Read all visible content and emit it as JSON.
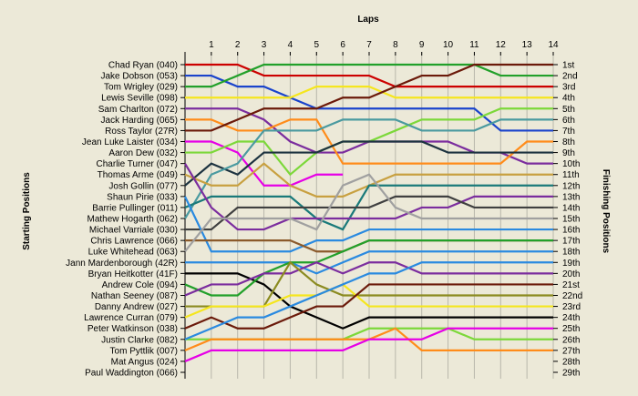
{
  "chart_data": {
    "type": "line",
    "chart_kind": "lap position chart",
    "title": "Laps",
    "xlabel": "Laps",
    "ylabel_left": "Starting Positions",
    "ylabel_right": "Finishing Positions",
    "x_ticks": [
      1,
      2,
      3,
      4,
      5,
      6,
      7,
      8,
      9,
      10,
      11,
      12,
      13,
      14
    ],
    "xlim": [
      0,
      14
    ],
    "y_axis": "position (1 at top)",
    "grid": true,
    "drivers": [
      "Chad Ryan (040)",
      "Jake Dobson (053)",
      "Tom Wrigley (029)",
      "Lewis Seville (098)",
      "Sam Charlton (072)",
      "Jack Harding (065)",
      "Ross Taylor (27R)",
      "Jean Luke Laister (034)",
      "Aaron Dew (032)",
      "Charlie Turner (047)",
      "Thomas Arme (049)",
      "Josh Gollin (077)",
      "Shaun Pirie (033)",
      "Barrie Pullinger (011)",
      "Mathew Hogarth (062)",
      "Michael Varriale (030)",
      "Chris Lawrence (066)",
      "Luke Whitehead (063)",
      "Jann Mardenborough (42R)",
      "Bryan Heitkotter (41F)",
      "Andrew Cole (094)",
      "Nathan Seeney (087)",
      "Danny Andrew (027)",
      "Lawrence Curran (079)",
      "Peter Watkinson (038)",
      "Justin Clarke (082)",
      "Tom Pyttlik (007)",
      "Mat Angus (024)",
      "Paul Waddington (066)"
    ],
    "finishing_labels": [
      "1st",
      "2nd",
      "3rd",
      "4th",
      "5th",
      "6th",
      "7th",
      "8th",
      "9th",
      "10th",
      "11th",
      "12th",
      "13th",
      "14th",
      "15th",
      "16th",
      "17th",
      "18th",
      "19th",
      "20th",
      "21st",
      "22nd",
      "23rd",
      "24th",
      "25th",
      "26th",
      "27th",
      "28th",
      "29th"
    ],
    "series": [
      {
        "color": "#cc0000",
        "values": [
          1,
          1,
          1,
          2,
          2,
          2,
          2,
          2,
          3,
          3,
          3,
          3,
          3,
          3,
          3
        ]
      },
      {
        "color": "#1a44cc",
        "values": [
          2,
          2,
          3,
          3,
          4,
          5,
          5,
          5,
          5,
          5,
          5,
          5,
          7,
          7,
          7
        ]
      },
      {
        "color": "#22a02a",
        "values": [
          3,
          3,
          2,
          1,
          1,
          1,
          1,
          1,
          1,
          1,
          1,
          1,
          2,
          2,
          2
        ]
      },
      {
        "color": "#f5e61e",
        "values": [
          4,
          4,
          4,
          4,
          4,
          3,
          3,
          3,
          4,
          4,
          4,
          4,
          4,
          4,
          4
        ]
      },
      {
        "color": "#7b2d9e",
        "values": [
          5,
          5,
          5,
          6,
          8,
          9,
          9,
          8,
          8,
          8,
          8,
          9,
          9,
          10,
          10
        ]
      },
      {
        "color": "#ff8c1a",
        "values": [
          6,
          6,
          7,
          7,
          6,
          6,
          10,
          10,
          10,
          10,
          10,
          10,
          10,
          8,
          8
        ]
      },
      {
        "color": "#6b1a0a",
        "values": [
          7,
          7,
          6,
          5,
          5,
          5,
          4,
          4,
          3,
          2,
          2,
          1,
          1,
          1,
          1
        ]
      },
      {
        "color": "#e600e6",
        "values": [
          8,
          8,
          9,
          12,
          12,
          11,
          11
        ]
      },
      {
        "color": "#7cd83a",
        "values": [
          9,
          9,
          8,
          8,
          11,
          9,
          8,
          8,
          7,
          6,
          6,
          6,
          5,
          5,
          5
        ]
      },
      {
        "color": "#1d3340",
        "values": [
          12,
          10,
          11,
          9,
          9,
          9,
          8,
          8,
          8,
          8,
          9,
          9,
          9,
          9,
          9
        ]
      },
      {
        "color": "#4a9aa0",
        "values": [
          15,
          11,
          10,
          7,
          7,
          7,
          6,
          6,
          6,
          7,
          7,
          7,
          6,
          6,
          6
        ]
      },
      {
        "color": "#c8a040",
        "values": [
          11,
          12,
          12,
          10,
          12,
          13,
          13,
          12,
          11,
          11,
          11,
          11,
          11,
          11,
          11
        ]
      },
      {
        "color": "#1a7a7a",
        "values": [
          14,
          13,
          13,
          13,
          13,
          15,
          16,
          12,
          12,
          12,
          12,
          12,
          12,
          12,
          12
        ]
      },
      {
        "color": "#7b2d9e",
        "values": [
          10,
          14,
          16,
          16,
          15,
          15,
          15,
          15,
          15,
          14,
          14,
          13,
          13,
          13,
          13
        ]
      },
      {
        "color": "#404040",
        "values": [
          16,
          16,
          14,
          14,
          14,
          14,
          14,
          14,
          13,
          13,
          13,
          14,
          14,
          14,
          14
        ]
      },
      {
        "color": "#2a8ae0",
        "values": [
          13,
          18,
          18,
          18,
          18,
          17,
          17,
          16,
          16,
          16,
          16,
          16,
          16,
          16,
          16
        ]
      },
      {
        "color": "#8b5a2b",
        "values": [
          17,
          17,
          17,
          17,
          17,
          18,
          18,
          17,
          17,
          17,
          17,
          17,
          17,
          17,
          17
        ]
      },
      {
        "color": "#a0a0a0",
        "values": [
          18,
          15,
          15,
          15,
          15,
          16,
          12,
          11,
          14,
          15,
          15,
          15,
          15,
          15,
          15
        ]
      },
      {
        "color": "#2a8ae0",
        "values": [
          19,
          19,
          19,
          19,
          19,
          20,
          19,
          18,
          18,
          18,
          18,
          18,
          18,
          18,
          18
        ]
      },
      {
        "color": "#000000",
        "values": [
          20,
          20,
          20,
          21,
          23,
          24,
          25,
          24,
          24,
          24,
          24,
          24,
          24,
          24,
          24
        ]
      },
      {
        "color": "#22a02a",
        "values": [
          21,
          22,
          22,
          20,
          19,
          19,
          18,
          17,
          17,
          17,
          17,
          17,
          17,
          17,
          17
        ]
      },
      {
        "color": "#7b2d9e",
        "values": [
          22,
          21,
          21,
          20,
          20,
          19,
          20,
          19,
          19,
          20,
          20,
          20,
          20,
          20,
          20
        ]
      },
      {
        "color": "#8b8b20",
        "values": [
          23,
          23,
          23,
          23,
          19,
          21,
          22,
          22,
          22,
          22,
          22,
          22,
          22,
          22,
          22
        ]
      },
      {
        "color": "#f5e61e",
        "values": [
          24,
          23,
          23,
          23,
          22,
          22,
          21,
          23,
          23,
          23,
          23,
          23,
          23,
          23,
          23
        ]
      },
      {
        "color": "#6b1a0a",
        "values": [
          25,
          24,
          25,
          25,
          24,
          23,
          23,
          21,
          21,
          21,
          21,
          21,
          21,
          21,
          21
        ]
      },
      {
        "color": "#7cd83a",
        "values": [
          26,
          26,
          26,
          26,
          26,
          26,
          26,
          25,
          25,
          25,
          25,
          26,
          26,
          26,
          26
        ]
      },
      {
        "color": "#ff8c1a",
        "values": [
          27,
          26,
          26,
          26,
          26,
          26,
          26,
          26,
          25,
          27,
          27,
          27,
          27,
          27,
          27
        ]
      },
      {
        "color": "#e600e6",
        "values": [
          28,
          27,
          27,
          27,
          27,
          27,
          27,
          26,
          26,
          26,
          25,
          25,
          25,
          25,
          25
        ]
      },
      {
        "color": "#2a8ae0",
        "values": [
          26,
          25,
          24,
          24,
          23,
          22,
          21,
          20,
          20,
          19,
          19,
          19,
          19,
          19,
          19
        ]
      }
    ]
  }
}
